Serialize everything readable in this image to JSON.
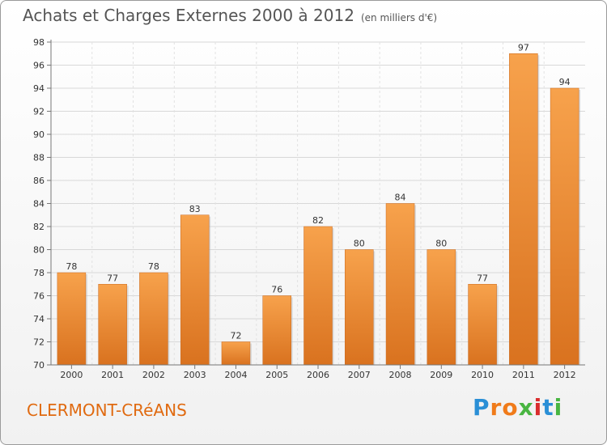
{
  "header": {
    "title": "Achats et Charges Externes 2000 à 2012",
    "subtitle": "(en milliers d'€)"
  },
  "footer": {
    "town": "CLERMONT-CRéANS",
    "brand_letters": [
      "P",
      "r",
      "o",
      "x",
      "i",
      "t",
      "i"
    ],
    "brand_colors": [
      "#2a8fd6",
      "#f07b1a",
      "#f07b1a",
      "#48b541",
      "#d92d2d",
      "#2a8fd6",
      "#48b541"
    ]
  },
  "chart_data": {
    "type": "bar",
    "title": "Achats et Charges Externes 2000 à 2012",
    "subtitle": "(en milliers d'€)",
    "xlabel": "",
    "ylabel": "",
    "categories": [
      "2000",
      "2001",
      "2002",
      "2003",
      "2004",
      "2005",
      "2006",
      "2007",
      "2008",
      "2009",
      "2010",
      "2011",
      "2012"
    ],
    "values": [
      78,
      77,
      78,
      83,
      72,
      76,
      82,
      80,
      84,
      80,
      77,
      97,
      94
    ],
    "ylim": [
      70,
      98
    ],
    "yticks": [
      70,
      72,
      74,
      76,
      78,
      80,
      82,
      84,
      86,
      88,
      90,
      92,
      94,
      96,
      98
    ],
    "grid": true,
    "bar_color": "#f0913a"
  }
}
